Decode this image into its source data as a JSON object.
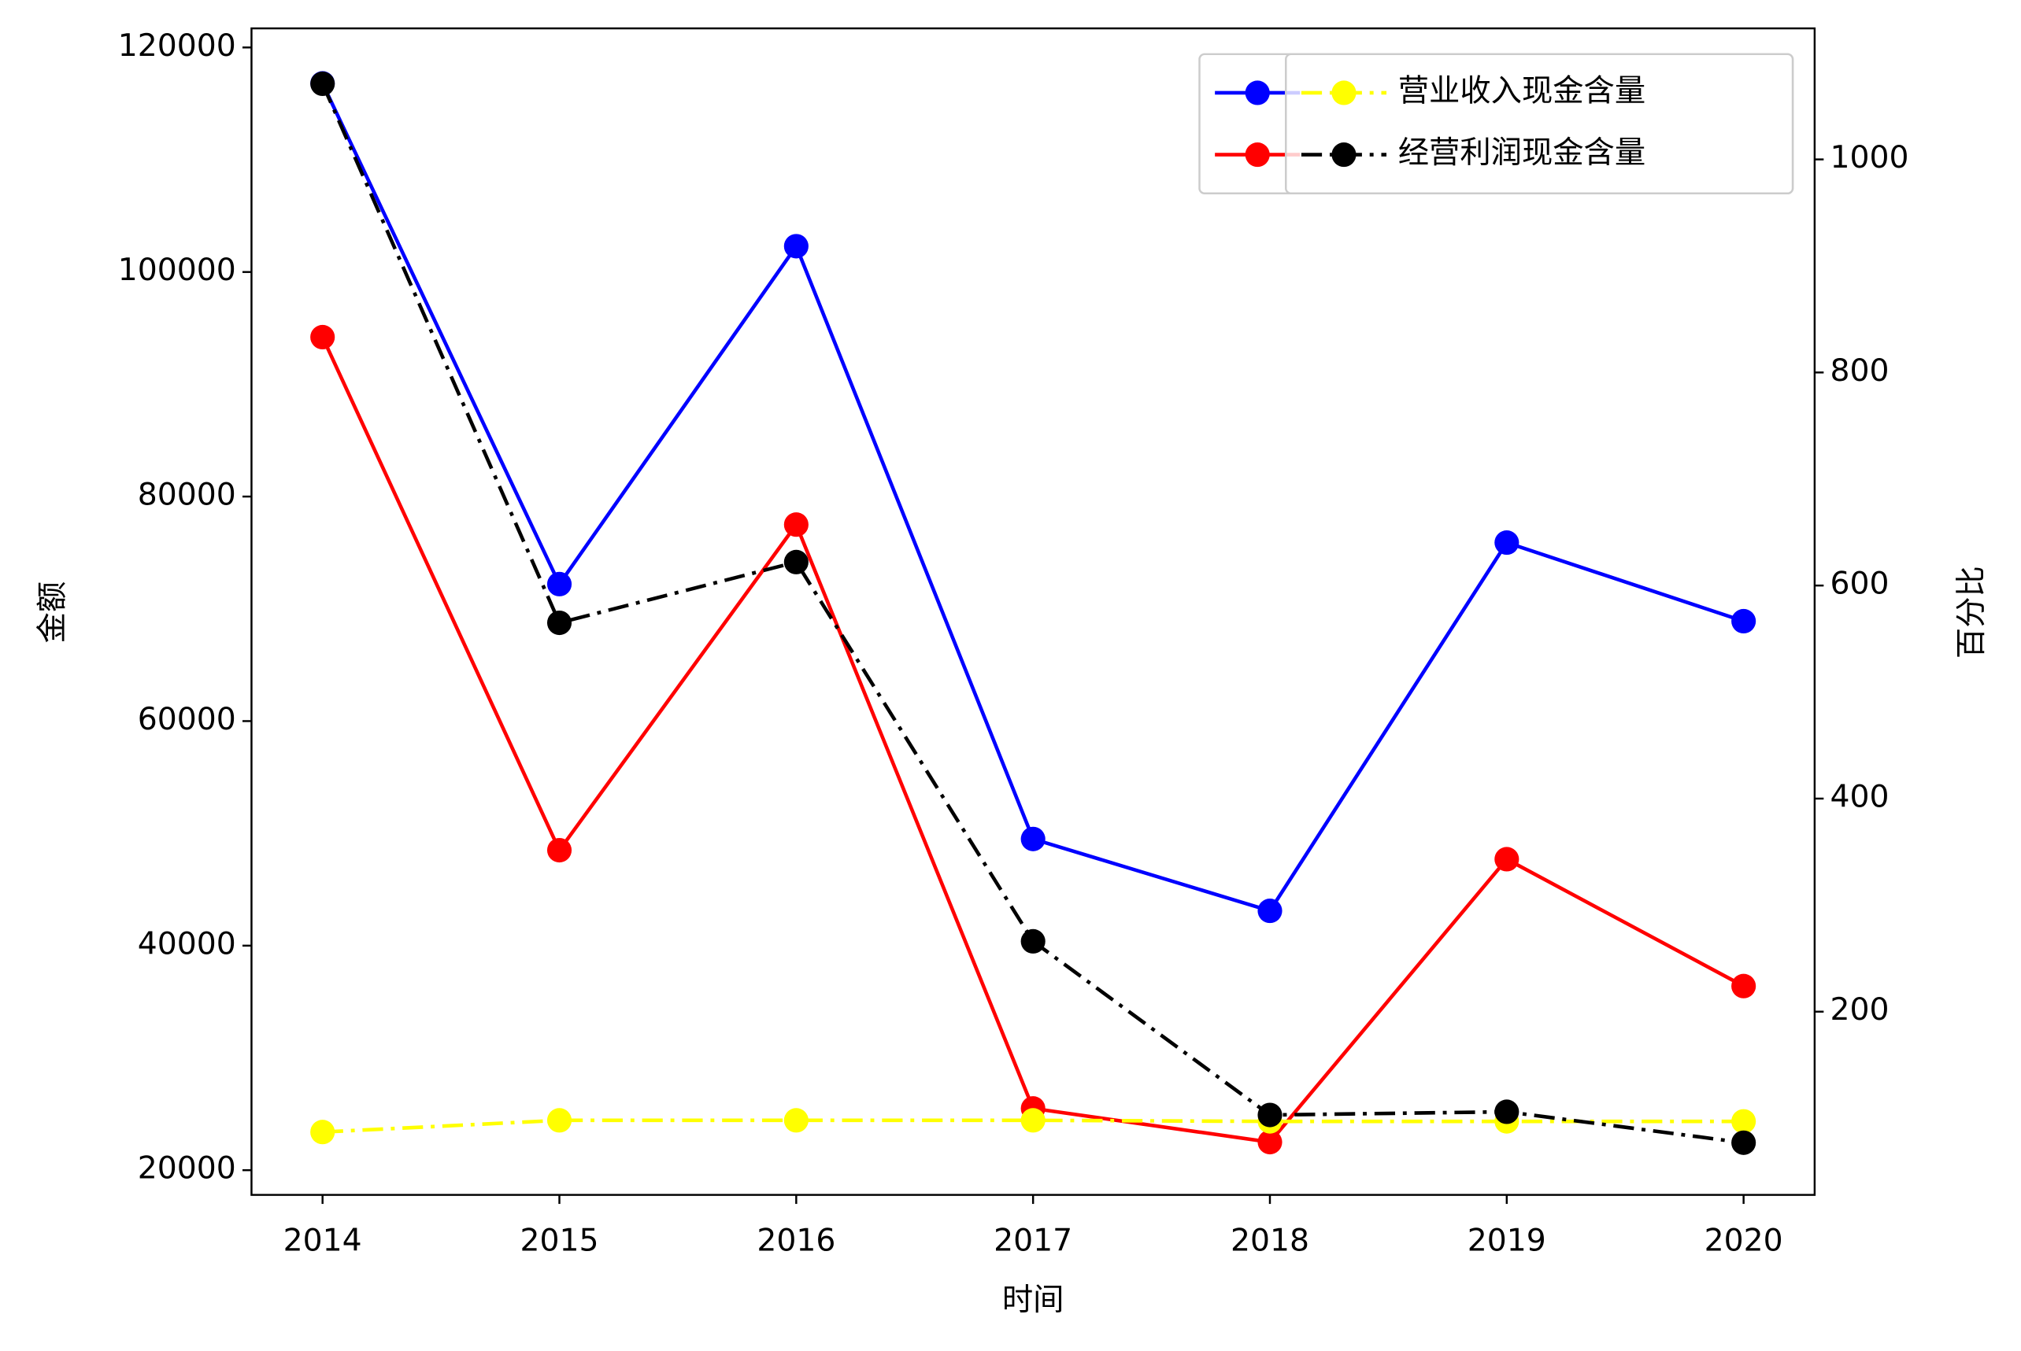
{
  "chart_data": {
    "type": "line",
    "x_label": "时间",
    "y_label": "金额",
    "y2_label": "百分比",
    "x": [
      2014,
      2015,
      2016,
      2017,
      2018,
      2019,
      2020
    ],
    "xlim": [
      2013.7,
      2020.3
    ],
    "xticks": [
      2014,
      2015,
      2016,
      2017,
      2018,
      2019,
      2020
    ],
    "ylim": [
      17800,
      121700
    ],
    "yticks": [
      20000,
      40000,
      60000,
      80000,
      100000,
      120000
    ],
    "y2lim": [
      28,
      1123
    ],
    "y2ticks": [
      200,
      400,
      600,
      800,
      1000
    ],
    "grid": false,
    "legend": "upper right",
    "series": [
      {
        "color": "#0000ff",
        "linestyle": "solid",
        "values": [
          116800,
          72200,
          102300,
          49500,
          43100,
          75900,
          68900
        ]
      },
      {
        "color": "#ff0000",
        "linestyle": "solid",
        "values": [
          94200,
          48500,
          77500,
          25500,
          22500,
          47700,
          36400
        ]
      },
      {
        "name": "营业收入现金含量",
        "color": "#ffff00",
        "linestyle": "dashdot",
        "axis": "y2",
        "values": [
          87,
          98,
          98,
          98,
          97,
          97,
          97
        ]
      },
      {
        "name": "经营利润现金含量",
        "color": "#000000",
        "linestyle": "dashdot",
        "axis": "y2",
        "values": [
          1071,
          565,
          622,
          266,
          103,
          106,
          77
        ]
      }
    ]
  }
}
